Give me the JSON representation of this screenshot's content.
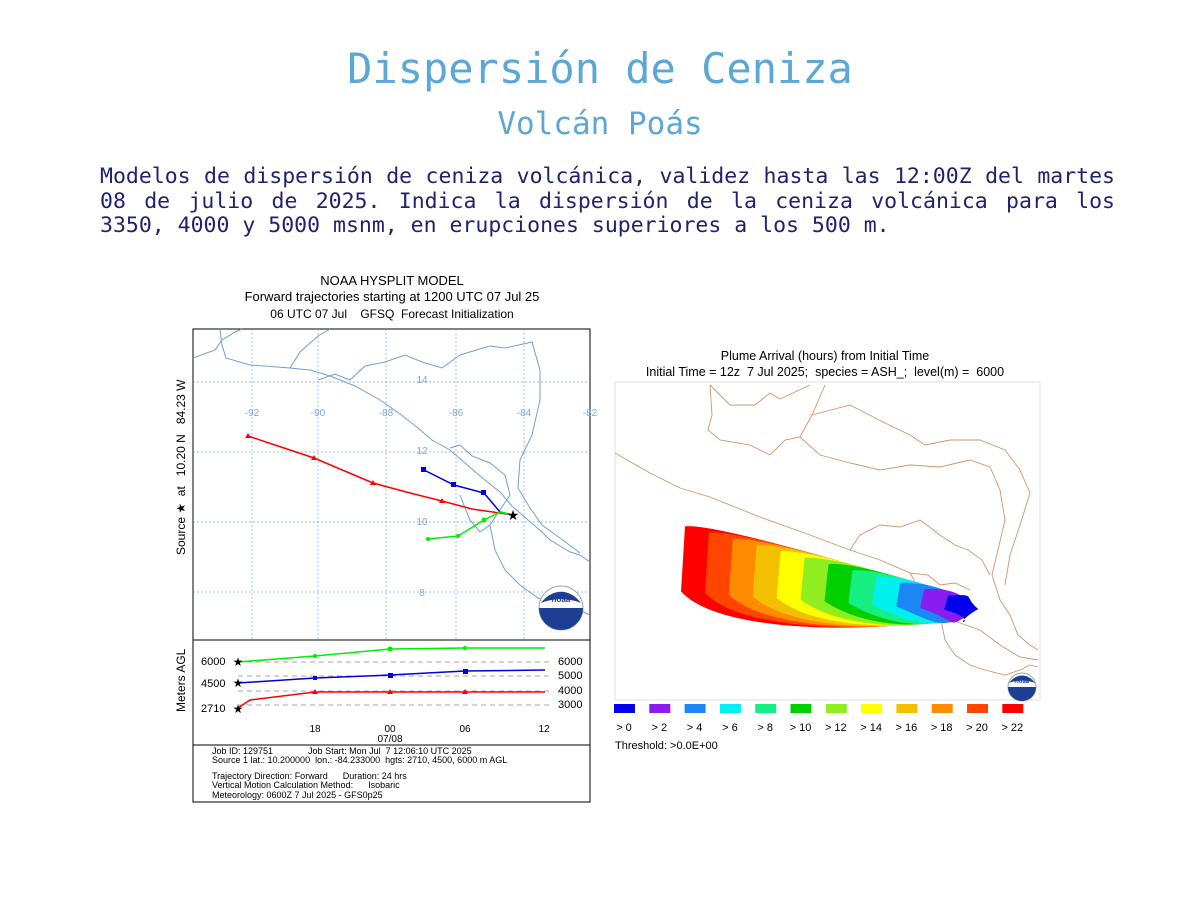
{
  "header": {
    "title": "Dispersión de Ceniza",
    "subtitle": "Volcán Poás",
    "description": "Modelos de dispersión de ceniza volcánica, validez hasta las 12:00Z del martes 08 de julio de 2025. Indica la dispersión de la ceniza volcánica para los 3350, 4000 y 5000 msnm, en erupciones superiores a los 500 m."
  },
  "hysplit": {
    "title_lines": [
      "NOAA HYSPLIT MODEL",
      "Forward trajectories starting at 1200 UTC 07 Jul 25",
      "06 UTC 07 Jul    GFSQ  Forecast Initialization"
    ],
    "y_axis_label": "Source ★  at   10.20 N   84.23 W",
    "lon_labels": [
      "-92",
      "-90",
      "-88",
      "-86",
      "-84",
      "-82"
    ],
    "lat_labels": [
      "14",
      "12",
      "10",
      "8"
    ],
    "lower_axis_label": "Meters AGL",
    "left_heights": [
      "6000",
      "4500",
      "2710"
    ],
    "right_heights": [
      "6000",
      "5000",
      "4000",
      "3000"
    ],
    "time_ticks": [
      "18",
      "00",
      "06",
      "12"
    ],
    "date_label": "07/08",
    "info_lines": [
      "Job ID: 129751              Job Start: Mon Jul  7 12:06:10 UTC 2025",
      "Source 1 lat.: 10.200000  lon.: -84.233000  hgts: 2710, 4500, 6000 m AGL",
      "Trajectory Direction: Forward      Duration: 24 hrs",
      "Vertical Motion Calculation Method:      Isobaric",
      "Meteorology: 0600Z 7 Jul 2025 - GFS0p25"
    ],
    "logo_text": "noaa",
    "colors": {
      "red": "#ff0000",
      "blue": "#0000dd",
      "green": "#00ee00"
    }
  },
  "plume": {
    "title_lines": [
      "Plume Arrival (hours) from Initial Time",
      "Initial Time = 12z  7 Jul 2025;  species = ASH_;  level(m) =  6000"
    ],
    "legend": [
      {
        "label": "> 0",
        "color": "#0000ee"
      },
      {
        "label": "> 2",
        "color": "#8a1cf2"
      },
      {
        "label": "> 4",
        "color": "#1c86f5"
      },
      {
        "label": "> 6",
        "color": "#00f0f0"
      },
      {
        "label": "> 8",
        "color": "#16f083"
      },
      {
        "label": "> 10",
        "color": "#00d000"
      },
      {
        "label": "> 12",
        "color": "#90ee20"
      },
      {
        "label": "> 14",
        "color": "#ffff00"
      },
      {
        "label": "> 16",
        "color": "#f2c000"
      },
      {
        "label": "> 18",
        "color": "#ff8c00"
      },
      {
        "label": "> 20",
        "color": "#ff4500"
      },
      {
        "label": "> 22",
        "color": "#ff0000"
      }
    ],
    "threshold": "Threshold: >0.0E+00",
    "logo_text": "noaa"
  }
}
